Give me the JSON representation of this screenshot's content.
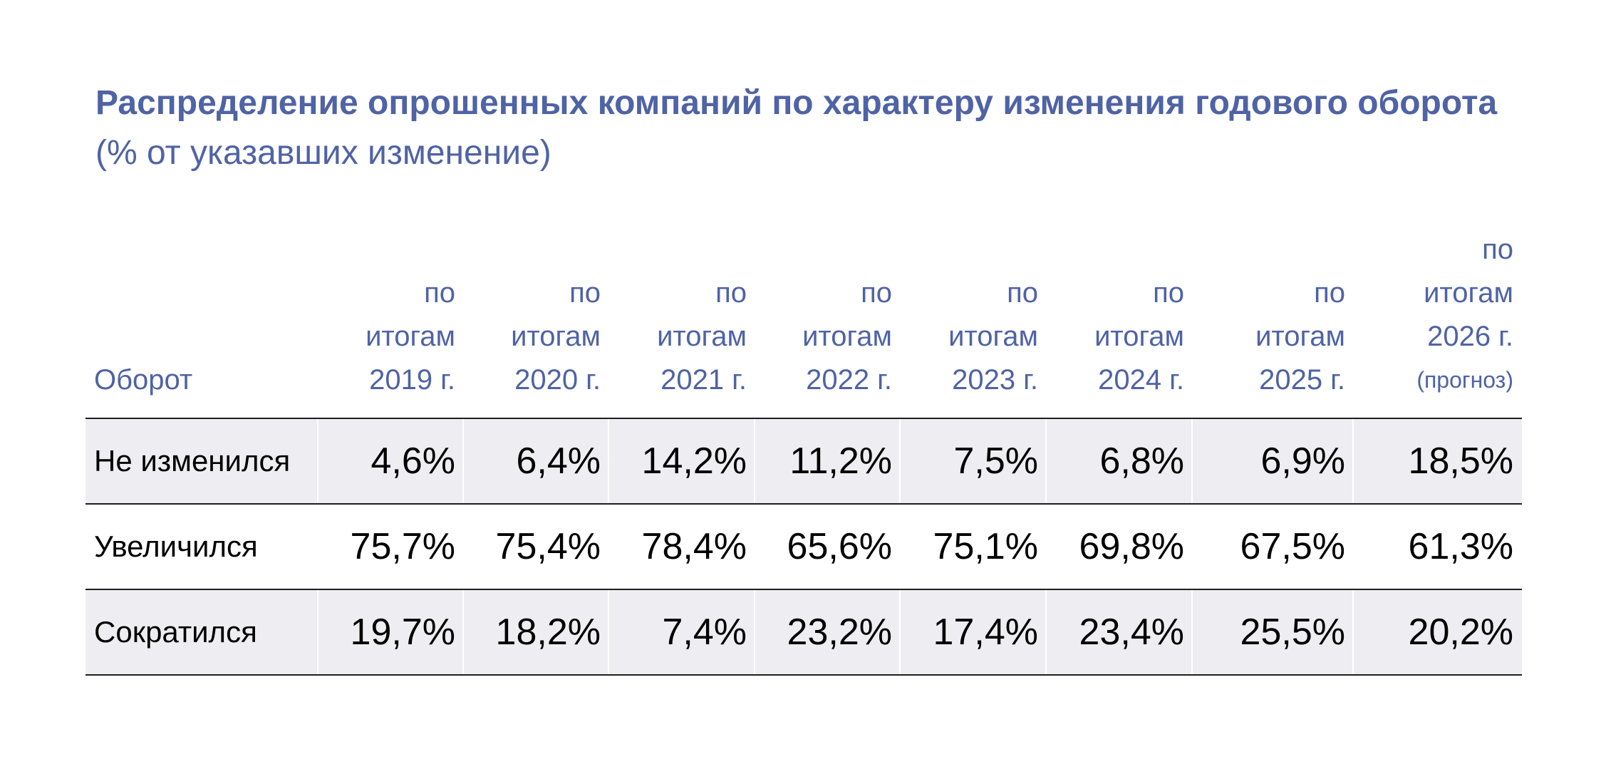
{
  "title": {
    "bold_part": "Распределение опрошенных компаний по характеру изменения годового оборота",
    "normal_part": "(% от указавших изменение)"
  },
  "table": {
    "corner_label": "Оборот",
    "columns": [
      {
        "line1": "по",
        "line2": "итогам",
        "line3": "2019 г.",
        "note": ""
      },
      {
        "line1": "по",
        "line2": "итогам",
        "line3": "2020 г.",
        "note": ""
      },
      {
        "line1": "по",
        "line2": "итогам",
        "line3": "2021 г.",
        "note": ""
      },
      {
        "line1": "по",
        "line2": "итогам",
        "line3": "2022 г.",
        "note": ""
      },
      {
        "line1": "по",
        "line2": "итогам",
        "line3": "2023 г.",
        "note": ""
      },
      {
        "line1": "по",
        "line2": "итогам",
        "line3": "2024 г.",
        "note": ""
      },
      {
        "line1": "по",
        "line2": "итогам",
        "line3": "2025 г.",
        "note": ""
      },
      {
        "line1": "по",
        "line2": "итогам",
        "line3": "2026 г.",
        "note": "(прогноз)"
      }
    ],
    "rows": [
      {
        "label": "Не изменился",
        "values": [
          "4,6%",
          "6,4%",
          "14,2%",
          "11,2%",
          "7,5%",
          "6,8%",
          "6,9%",
          "18,5%"
        ]
      },
      {
        "label": "Увеличился",
        "values": [
          "75,7%",
          "75,4%",
          "78,4%",
          "65,6%",
          "75,1%",
          "69,8%",
          "67,5%",
          "61,3%"
        ]
      },
      {
        "label": "Сократился",
        "values": [
          "19,7%",
          "18,2%",
          "7,4%",
          "23,2%",
          "17,4%",
          "23,4%",
          "25,5%",
          "20,2%"
        ]
      }
    ]
  },
  "colors": {
    "title_blue": "#4f63a5",
    "row_shade": "#eeeef2",
    "rule": "#1e1e1e"
  }
}
